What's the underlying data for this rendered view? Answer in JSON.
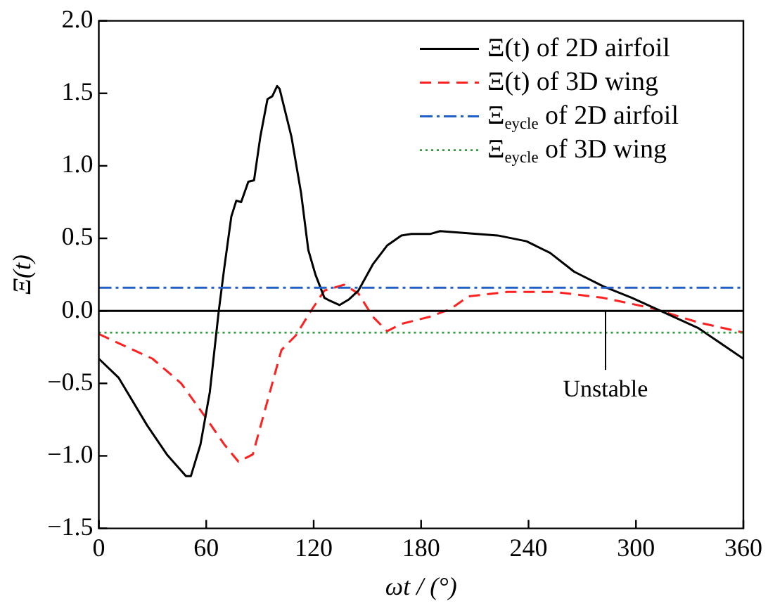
{
  "chart_data": {
    "type": "line",
    "xlabel": "ωt / (°)",
    "ylabel": "Ξ(t)",
    "xlim": [
      0,
      360
    ],
    "xticks": [
      0,
      60,
      120,
      180,
      240,
      300,
      360
    ],
    "ylim": [
      -1.5,
      2.0
    ],
    "yticks": [
      {
        "value": -1.5,
        "label": "−1.5"
      },
      {
        "value": -1,
        "label": "−1.0"
      },
      {
        "value": -0.5,
        "label": "−0.5"
      },
      {
        "value": 0,
        "label": "0.0"
      },
      {
        "value": 0.5,
        "label": "0.5"
      },
      {
        "value": 1,
        "label": "1.0"
      },
      {
        "value": 1.5,
        "label": "1.5"
      },
      {
        "value": 2,
        "label": "2.0"
      }
    ],
    "grid": false,
    "legend": "top right",
    "marker": "none",
    "series": [
      {
        "name": "Ξ(t) of 2D airfoil",
        "color": "#000000",
        "line_style": "solid",
        "x": [
          0,
          11,
          27,
          38,
          48.7,
          51.4,
          56.8,
          62,
          67,
          70,
          74,
          76.8,
          79.5,
          83.5,
          86.7,
          90.2,
          94.2,
          96.9,
          99.6,
          101,
          103.6,
          107.6,
          113,
          117,
          121,
          126,
          129,
          134.4,
          139.8,
          145,
          153,
          161,
          169,
          174.6,
          185,
          190.6,
          222.7,
          238.8,
          252,
          265.5,
          281.6,
          297.7,
          313.7,
          335,
          360
        ],
        "values": [
          -0.33,
          -0.46,
          -0.79,
          -0.99,
          -1.14,
          -1.14,
          -0.92,
          -0.56,
          0,
          0.29,
          0.65,
          0.76,
          0.75,
          0.89,
          0.9,
          1.2,
          1.46,
          1.48,
          1.55,
          1.53,
          1.4,
          1.2,
          0.81,
          0.42,
          0.25,
          0.09,
          0.07,
          0.04,
          0.08,
          0.14,
          0.32,
          0.45,
          0.52,
          0.53,
          0.53,
          0.55,
          0.52,
          0.48,
          0.4,
          0.27,
          0.17,
          0.09,
          0,
          -0.12,
          -0.33
        ]
      },
      {
        "name": "Ξ(t) of 3D wing",
        "color": "#ff2020",
        "line_style": "dashed",
        "x": [
          0,
          14,
          30,
          46,
          59.4,
          70,
          78,
          86,
          94,
          102,
          110,
          118,
          126,
          137,
          145,
          153,
          161,
          169,
          185,
          196,
          206.6,
          228,
          255,
          281.6,
          308.4,
          335,
          360
        ],
        "values": [
          -0.16,
          -0.24,
          -0.33,
          -0.5,
          -0.73,
          -0.92,
          -1.04,
          -0.99,
          -0.63,
          -0.27,
          -0.17,
          -0.01,
          0.14,
          0.18,
          0.12,
          -0.04,
          -0.14,
          -0.09,
          -0.04,
          0.01,
          0.1,
          0.13,
          0.13,
          0.09,
          0.02,
          -0.08,
          -0.15
        ]
      }
    ],
    "ref_lines": [
      {
        "axis": "y",
        "value": 0,
        "color": "#000000",
        "line_style": "solid"
      },
      {
        "axis": "y",
        "value": 0.16,
        "label": "Ξ$_{eycle}$ of 2D airfoil",
        "color": "#1f5fc8",
        "line_style": "dashdot"
      },
      {
        "axis": "y",
        "value": -0.15,
        "label": "Ξ$_{eycle}$ of 3D wing",
        "color": "#2e9a3a",
        "line_style": "dotted"
      }
    ],
    "annotations": [
      {
        "text": "Unstable",
        "x": 283,
        "y": 0
      }
    ]
  }
}
